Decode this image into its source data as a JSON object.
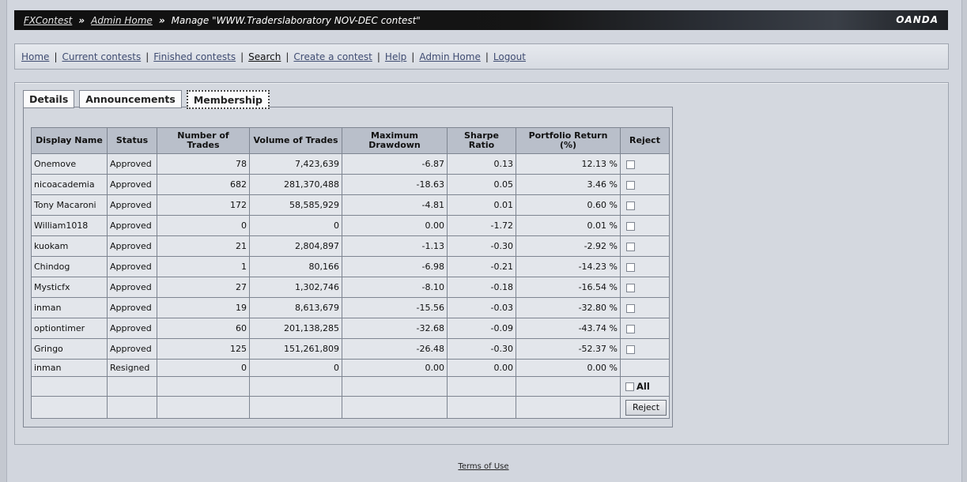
{
  "header": {
    "crumbs": [
      {
        "label": "FXContest",
        "link": true
      },
      {
        "label": "Admin Home",
        "link": true
      },
      {
        "label": "Manage \"WWW.Traderslaboratory NOV-DEC contest\"",
        "link": false
      }
    ],
    "separator": "»",
    "brand": "OANDA"
  },
  "nav": {
    "items": [
      {
        "label": "Home"
      },
      {
        "label": "Current contests"
      },
      {
        "label": "Finished contests"
      },
      {
        "label": "Search"
      },
      {
        "label": "Create a contest"
      },
      {
        "label": "Help"
      },
      {
        "label": "Admin Home"
      },
      {
        "label": "Logout"
      }
    ],
    "separator": "|"
  },
  "tabs": [
    {
      "label": "Details",
      "active": false
    },
    {
      "label": "Announcements",
      "active": false
    },
    {
      "label": "Membership",
      "active": true
    }
  ],
  "table": {
    "columns": {
      "name": "Display Name",
      "status": "Status",
      "trades": "Number of Trades",
      "volume": "Volume of Trades",
      "drawdown": "Maximum Drawdown",
      "sharpe": "Sharpe Ratio",
      "ret": "Portfolio Return (%)",
      "reject": "Reject"
    },
    "rows": [
      {
        "name": "Onemove",
        "status": "Approved",
        "trades": "78",
        "volume": "7,423,639",
        "drawdown": "-6.87",
        "sharpe": "0.13",
        "ret": "12.13 %",
        "checkbox": true
      },
      {
        "name": "nicoacademia",
        "status": "Approved",
        "trades": "682",
        "volume": "281,370,488",
        "drawdown": "-18.63",
        "sharpe": "0.05",
        "ret": "3.46 %",
        "checkbox": true
      },
      {
        "name": "Tony Macaroni",
        "status": "Approved",
        "trades": "172",
        "volume": "58,585,929",
        "drawdown": "-4.81",
        "sharpe": "0.01",
        "ret": "0.60 %",
        "checkbox": true
      },
      {
        "name": "William1018",
        "status": "Approved",
        "trades": "0",
        "volume": "0",
        "drawdown": "0.00",
        "sharpe": "-1.72",
        "ret": "0.01 %",
        "checkbox": true
      },
      {
        "name": "kuokam",
        "status": "Approved",
        "trades": "21",
        "volume": "2,804,897",
        "drawdown": "-1.13",
        "sharpe": "-0.30",
        "ret": "-2.92 %",
        "checkbox": true
      },
      {
        "name": "Chindog",
        "status": "Approved",
        "trades": "1",
        "volume": "80,166",
        "drawdown": "-6.98",
        "sharpe": "-0.21",
        "ret": "-14.23 %",
        "checkbox": true
      },
      {
        "name": "Mysticfx",
        "status": "Approved",
        "trades": "27",
        "volume": "1,302,746",
        "drawdown": "-8.10",
        "sharpe": "-0.18",
        "ret": "-16.54 %",
        "checkbox": true
      },
      {
        "name": "inman",
        "status": "Approved",
        "trades": "19",
        "volume": "8,613,679",
        "drawdown": "-15.56",
        "sharpe": "-0.03",
        "ret": "-32.80 %",
        "checkbox": true
      },
      {
        "name": "optiontimer",
        "status": "Approved",
        "trades": "60",
        "volume": "201,138,285",
        "drawdown": "-32.68",
        "sharpe": "-0.09",
        "ret": "-43.74 %",
        "checkbox": true
      },
      {
        "name": "Gringo",
        "status": "Approved",
        "trades": "125",
        "volume": "151,261,809",
        "drawdown": "-26.48",
        "sharpe": "-0.30",
        "ret": "-52.37 %",
        "checkbox": true
      },
      {
        "name": "inman",
        "status": "Resigned",
        "trades": "0",
        "volume": "0",
        "drawdown": "0.00",
        "sharpe": "0.00",
        "ret": "0.00 %",
        "checkbox": false
      }
    ],
    "all_label": "All",
    "reject_button": "Reject"
  },
  "footer": {
    "terms": "Terms of Use"
  }
}
